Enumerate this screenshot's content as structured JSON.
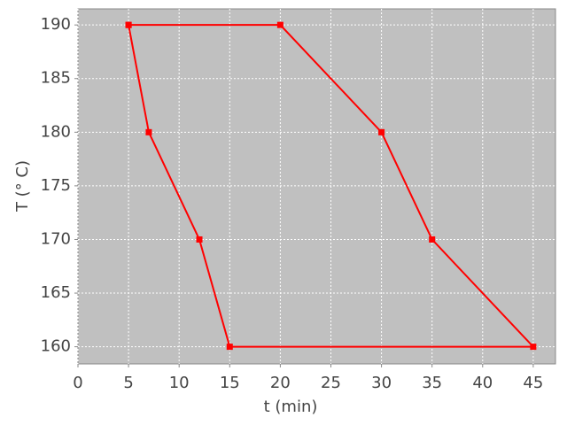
{
  "chart_data": {
    "type": "line",
    "xlabel": "t (min)",
    "ylabel": "T (° C)",
    "series": [
      {
        "color": "#ff0000",
        "x": [
          5,
          7,
          12,
          15,
          45,
          35,
          30,
          20,
          5
        ],
        "values": [
          190,
          180,
          170,
          160,
          160,
          170,
          180,
          190,
          190
        ]
      }
    ],
    "xlim": [
      0,
      47.2
    ],
    "xticks": [
      0,
      5,
      10,
      15,
      20,
      25,
      30,
      35,
      40,
      45
    ],
    "ylim": [
      158.4,
      191.5
    ],
    "yticks": [
      160,
      165,
      170,
      175,
      180,
      185,
      190
    ],
    "grid": true,
    "background": "#c0c0c0"
  }
}
